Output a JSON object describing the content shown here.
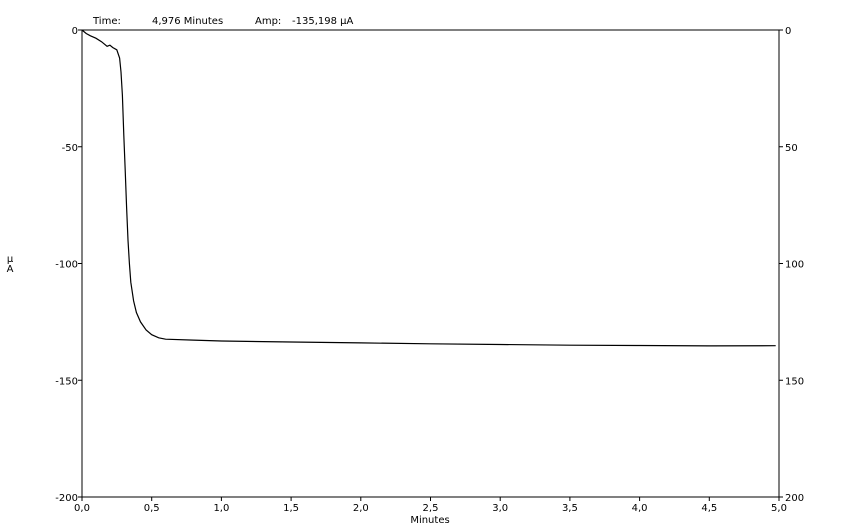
{
  "header": {
    "time_label": "Time:",
    "time_value": "4,976 Minutes",
    "amp_label": "Amp:",
    "amp_value": "-135,198 µA"
  },
  "chart_data": {
    "type": "line",
    "xlabel": "Minutes",
    "ylabel_left": "µ\nA",
    "xlim": [
      0.0,
      5.0
    ],
    "ylim": [
      -200,
      0
    ],
    "x_ticks": [
      0.0,
      0.5,
      1.0,
      1.5,
      2.0,
      2.5,
      3.0,
      3.5,
      4.0,
      4.5,
      5.0
    ],
    "x_tick_labels": [
      "0,0",
      "0,5",
      "1,0",
      "1,5",
      "2,0",
      "2,5",
      "3,0",
      "3,5",
      "4,0",
      "4,5",
      "5,0"
    ],
    "y_ticks_left": [
      0,
      -50,
      -100,
      -150,
      -200
    ],
    "y_tick_labels_left": [
      "0",
      "-50",
      "-100",
      "-150",
      "-200"
    ],
    "y_ticks_right": [
      0,
      -50,
      -100,
      -150,
      -200
    ],
    "y_tick_labels_right": [
      "0",
      "50",
      "100",
      "150",
      "200"
    ],
    "grid": false,
    "line_color": "#000000",
    "series": [
      {
        "x": [
          0.0,
          0.03,
          0.06,
          0.1,
          0.14,
          0.18,
          0.2,
          0.22,
          0.25,
          0.27,
          0.28,
          0.29,
          0.3,
          0.31,
          0.32,
          0.33,
          0.34,
          0.35,
          0.37,
          0.39,
          0.42,
          0.46,
          0.5,
          0.55,
          0.6,
          0.8,
          1.0,
          1.5,
          2.0,
          2.5,
          3.0,
          3.5,
          4.0,
          4.5,
          4.976
        ],
        "y": [
          0,
          -1.5,
          -2.5,
          -3.5,
          -5.0,
          -7.0,
          -6.5,
          -7.5,
          -8.5,
          -12,
          -18,
          -28,
          -45,
          -60,
          -76,
          -90,
          -100,
          -108,
          -116,
          -121,
          -125,
          -128.5,
          -130.5,
          -131.8,
          -132.4,
          -132.8,
          -133.2,
          -133.6,
          -134.0,
          -134.4,
          -134.7,
          -135.0,
          -135.1,
          -135.3,
          -135.198
        ]
      }
    ]
  }
}
